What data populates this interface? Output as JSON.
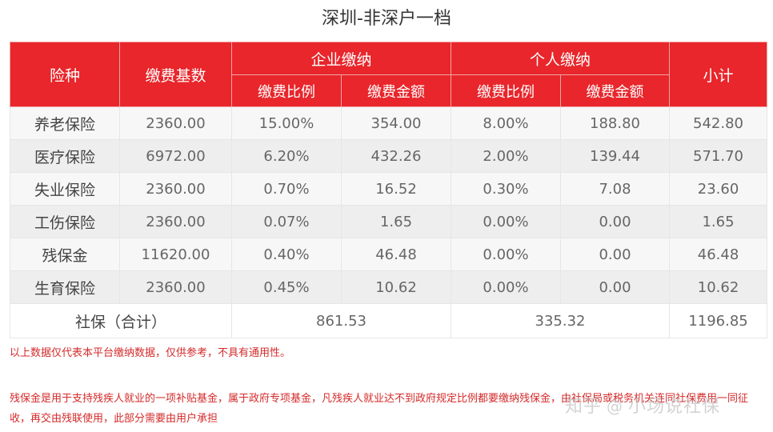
{
  "title": "深圳-非深户一档",
  "headers": {
    "insurance_type": "险种",
    "base": "缴费基数",
    "company": "企业缴纳",
    "personal": "个人缴纳",
    "rate": "缴费比例",
    "amount": "缴费金额",
    "subtotal": "小计"
  },
  "rows": [
    {
      "name": "养老保险",
      "base": "2360.00",
      "c_rate": "15.00%",
      "c_amt": "354.00",
      "p_rate": "8.00%",
      "p_amt": "188.80",
      "subtotal": "542.80"
    },
    {
      "name": "医疗保险",
      "base": "6972.00",
      "c_rate": "6.20%",
      "c_amt": "432.26",
      "p_rate": "2.00%",
      "p_amt": "139.44",
      "subtotal": "571.70"
    },
    {
      "name": "失业保险",
      "base": "2360.00",
      "c_rate": "0.70%",
      "c_amt": "16.52",
      "p_rate": "0.30%",
      "p_amt": "7.08",
      "subtotal": "23.60"
    },
    {
      "name": "工伤保险",
      "base": "2360.00",
      "c_rate": "0.07%",
      "c_amt": "1.65",
      "p_rate": "0.00%",
      "p_amt": "0.00",
      "subtotal": "1.65"
    },
    {
      "name": "残保金",
      "base": "11620.00",
      "c_rate": "0.40%",
      "c_amt": "46.48",
      "p_rate": "0.00%",
      "p_amt": "0.00",
      "subtotal": "46.48"
    },
    {
      "name": "生育保险",
      "base": "2360.00",
      "c_rate": "0.45%",
      "c_amt": "10.62",
      "p_rate": "0.00%",
      "p_amt": "0.00",
      "subtotal": "10.62"
    }
  ],
  "total": {
    "label": "社保（合计）",
    "company": "861.53",
    "personal": "335.32",
    "subtotal": "1196.85"
  },
  "notes": {
    "note1": "以上数据仅代表本平台缴纳数据，仅供参考，不具有通用性。",
    "note2": "残保金是用于支持残疾人就业的一项补贴基金，属于政府专项基金，凡残疾人就业达不到政府规定比例都要缴纳残保金，由社保局或税务机关连同社保费用一同征收，再交由残联使用，此部分需要由用户承担"
  },
  "watermark": {
    "site": "知乎",
    "at": "@",
    "author": "小场说社保"
  },
  "colors": {
    "header_red": "#e8262b",
    "note_red": "#d42a2a"
  }
}
